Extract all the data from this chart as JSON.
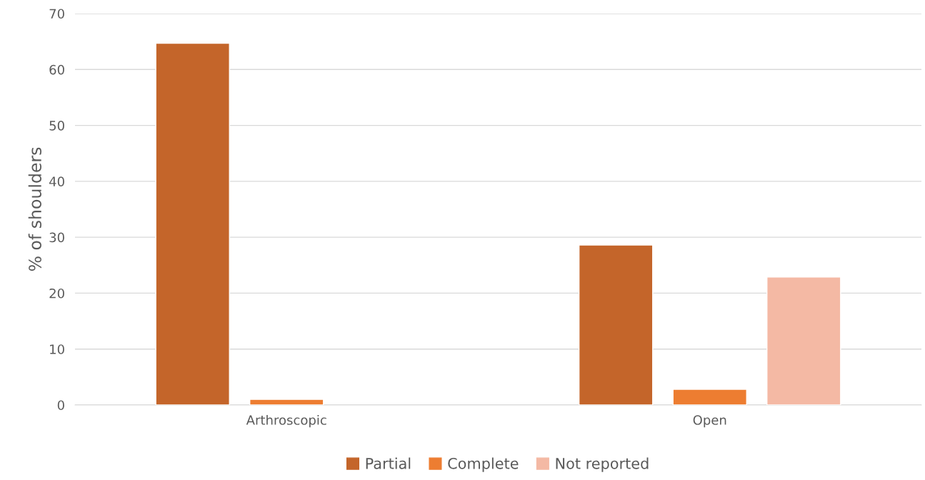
{
  "chart_data": {
    "type": "bar",
    "ylabel": "% of shoulders",
    "categories": [
      "Arthroscopic",
      "Open"
    ],
    "series": [
      {
        "name": "Partial",
        "color": "#c4652a",
        "values": [
          64.7,
          28.6
        ]
      },
      {
        "name": "Complete",
        "color": "#ed7d31",
        "values": [
          1.0,
          2.8
        ]
      },
      {
        "name": "Not reported",
        "color": "#f4b9a4",
        "values": [
          null,
          22.9
        ]
      }
    ],
    "ylim": [
      0,
      70
    ],
    "yticks": [
      0,
      10,
      20,
      30,
      40,
      50,
      60,
      70
    ],
    "grid": "y",
    "legend": "bottom"
  }
}
